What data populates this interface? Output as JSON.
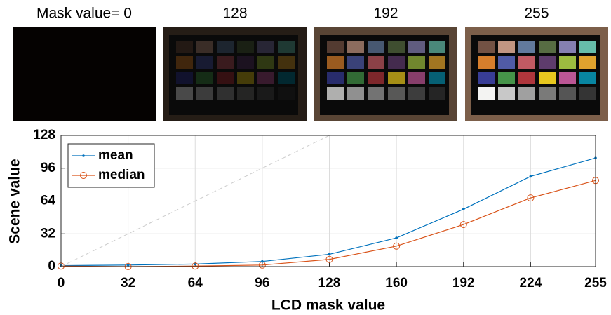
{
  "panels": [
    {
      "label": "Mask value= 0"
    },
    {
      "label": "128"
    },
    {
      "label": "192"
    },
    {
      "label": "255"
    }
  ],
  "chart_data": {
    "type": "line",
    "xlabel": "LCD mask value",
    "ylabel": "Scene value",
    "x": [
      0,
      32,
      64,
      96,
      128,
      160,
      192,
      224,
      255
    ],
    "series": [
      {
        "name": "mean",
        "color": "#0072bd",
        "marker": "dot",
        "values": [
          1,
          1.5,
          2.5,
          5,
          12,
          28,
          56,
          88,
          106
        ]
      },
      {
        "name": "median",
        "color": "#d95319",
        "marker": "circle",
        "values": [
          0.5,
          0,
          0.5,
          1.5,
          7,
          20,
          41,
          67,
          84
        ]
      },
      {
        "color": "#cccccc",
        "dashed": true,
        "values": [
          0,
          32,
          64,
          96,
          128,
          null,
          null,
          null,
          null
        ]
      }
    ],
    "xlim": [
      0,
      255
    ],
    "ylim": [
      0,
      128
    ],
    "xticks": [
      0,
      32,
      64,
      96,
      128,
      160,
      192,
      224,
      255
    ],
    "yticks": [
      0,
      32,
      64,
      96,
      128
    ],
    "grid": true,
    "legend": "upper left"
  }
}
